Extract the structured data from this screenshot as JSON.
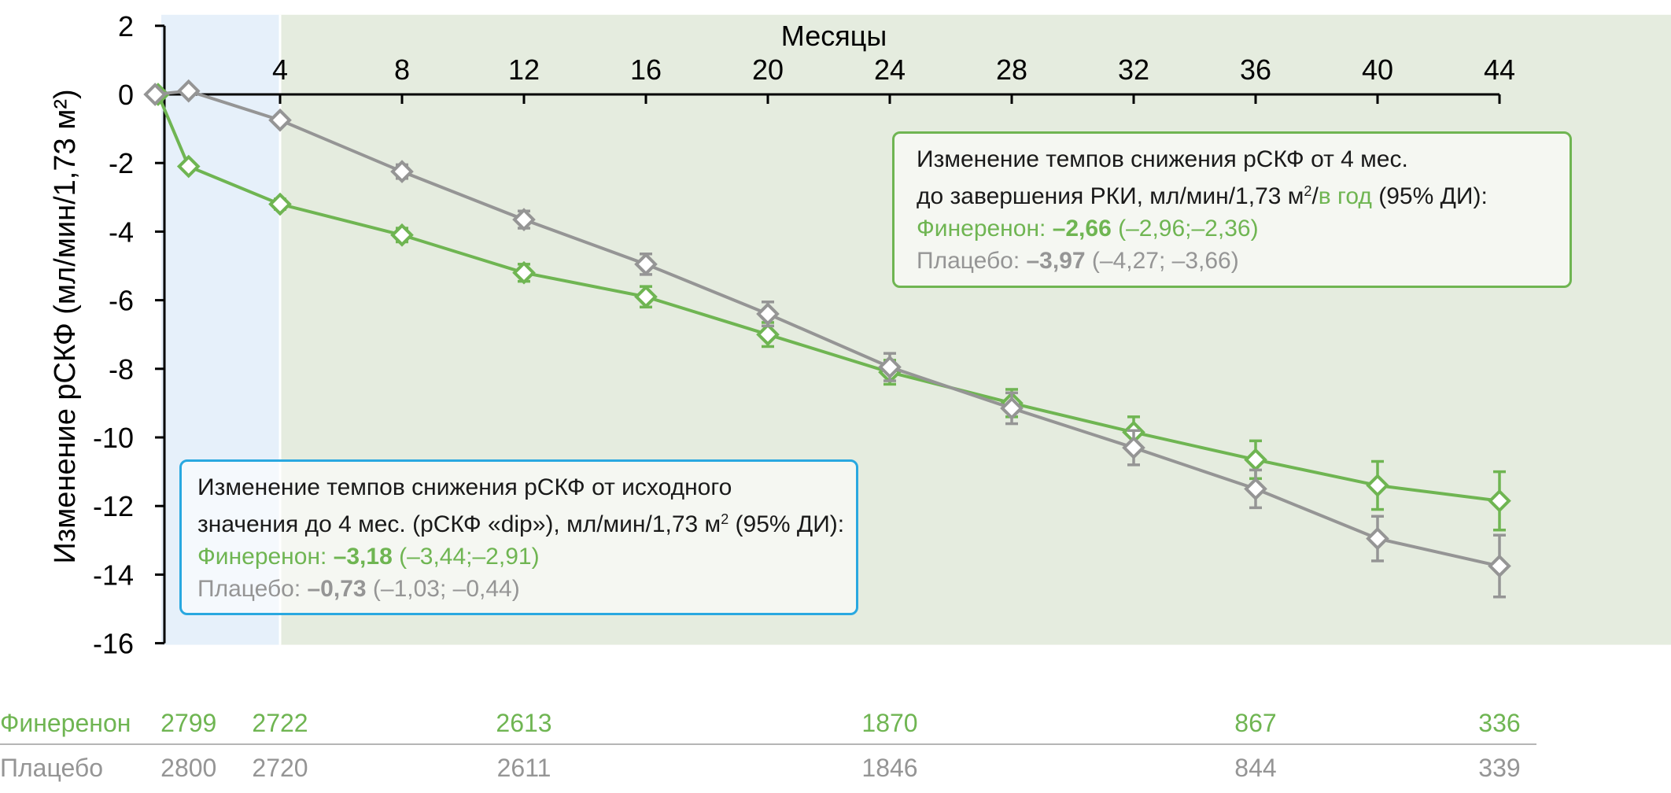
{
  "chart_data": {
    "type": "line",
    "xlabel": "Месяцы",
    "ylabel": "Изменение рСКФ (мл/мин/1,73 м²)",
    "xlim": [
      -1,
      44
    ],
    "ylim": [
      -16,
      2
    ],
    "x_ticks": [
      4,
      8,
      12,
      16,
      20,
      24,
      28,
      32,
      36,
      40,
      44
    ],
    "y_ticks": [
      2,
      0,
      -2,
      -4,
      -6,
      -8,
      -10,
      -12,
      -14,
      -16
    ],
    "shaded_regions": [
      {
        "from": -0.2,
        "to": 4,
        "color": "#e6f0fa"
      },
      {
        "from": 4,
        "to": 50,
        "color": "#e5ecdf"
      }
    ],
    "series": [
      {
        "name": "Финеренон",
        "color": "#6fb552",
        "x": [
          0,
          1,
          4,
          8,
          12,
          16,
          20,
          24,
          28,
          32,
          36,
          40,
          44
        ],
        "y": [
          0,
          -2.1,
          -3.2,
          -4.1,
          -5.2,
          -5.9,
          -7.0,
          -8.1,
          -9.0,
          -9.85,
          -10.65,
          -11.4,
          -11.85
        ],
        "err": [
          0,
          0.1,
          0.15,
          0.2,
          0.25,
          0.3,
          0.35,
          0.35,
          0.4,
          0.45,
          0.55,
          0.7,
          0.85
        ]
      },
      {
        "name": "Плацебо",
        "color": "#959595",
        "x": [
          -0.1,
          1,
          4,
          8,
          12,
          16,
          20,
          24,
          28,
          32,
          36,
          40,
          44
        ],
        "y": [
          0,
          0.1,
          -0.75,
          -2.25,
          -3.65,
          -4.95,
          -6.4,
          -7.95,
          -9.15,
          -10.3,
          -11.5,
          -12.95,
          -13.75
        ],
        "err": [
          0,
          0.1,
          0.12,
          0.2,
          0.25,
          0.3,
          0.35,
          0.4,
          0.45,
          0.5,
          0.55,
          0.65,
          0.9
        ]
      }
    ],
    "at_risk": {
      "labels": [
        "Финеренон",
        "Плацебо"
      ],
      "x": [
        1,
        4,
        12,
        24,
        36,
        44
      ],
      "rows": [
        [
          "2799",
          "2722",
          "2613",
          "1870",
          "867",
          "336"
        ],
        [
          "2800",
          "2720",
          "2611",
          "1846",
          "844",
          "339"
        ]
      ]
    }
  },
  "annotations": {
    "dip": {
      "line1": "Изменение темпов снижения рСКФ от исходного",
      "line2a": "значения до 4 мес. (рСКФ «dip»), мл/мин/1,73 м",
      "line2_sup": "2",
      "line2b": " (95% ДИ):",
      "fin_label": "Финеренон: ",
      "fin_value": "–3,18",
      "fin_ci": " (–3,44;–2,91)",
      "pla_label": "Плацебо: ",
      "pla_value": "–0,73",
      "pla_ci": " (–1,03; –0,44)"
    },
    "slope": {
      "line1": "Изменение темпов снижения рСКФ от 4 мес.",
      "line2a": "до завершения РКИ, мл/мин/1,73 м",
      "line2_sup": "2",
      "line2_slash": "/",
      "line2_year": "в год",
      "line2b": " (95% ДИ):",
      "fin_label": "Финеренон: ",
      "fin_value": "–2,66",
      "fin_ci": " (–2,96;–2,36)",
      "pla_label": "Плацебо: ",
      "pla_value": "–3,97",
      "pla_ci": " (–4,27; –3,66)"
    }
  }
}
